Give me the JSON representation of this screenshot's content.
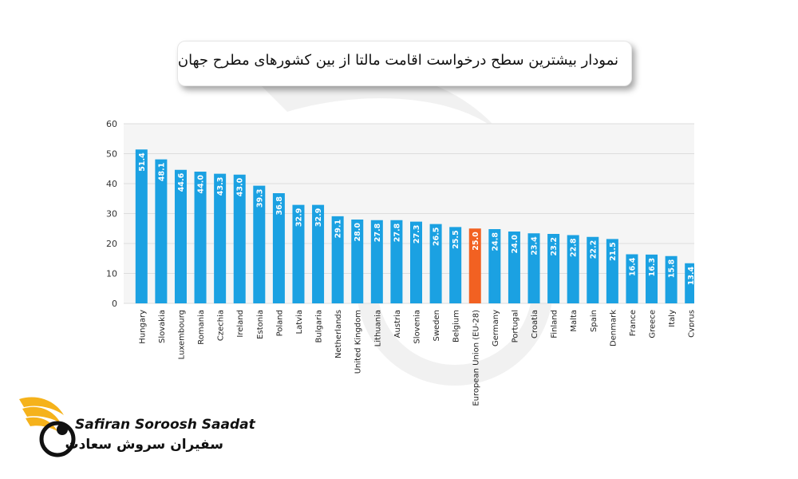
{
  "header": {
    "title": "نمودار بیشترین سطح درخواست اقامت مالتا از بین کشورهای مطرح جهان"
  },
  "brand": {
    "name_en": "Safiran Soroosh Saadat",
    "name_fa": "سفیران سروش سعادت"
  },
  "colors": {
    "bar": "#1ba1e2",
    "highlight": "#f26122",
    "grid": "#dddddd",
    "plot_bg": "#f5f5f5"
  },
  "chart_data": {
    "type": "bar",
    "title": "نمودار بیشترین سطح درخواست اقامت مالتا از بین کشورهای مطرح جهان",
    "xlabel": "",
    "ylabel": "",
    "ylim": [
      0,
      60
    ],
    "yticks": [
      0,
      10,
      20,
      30,
      40,
      50,
      60
    ],
    "grid": true,
    "highlight_category": "European Union (EU-28)",
    "categories": [
      "Hungary",
      "Slovakia",
      "Luxembourg",
      "Romania",
      "Czechia",
      "Ireland",
      "Estonia",
      "Poland",
      "Latvia",
      "Bulgaria",
      "Netherlands",
      "United Kingdom",
      "Lithuania",
      "Austria",
      "Slovenia",
      "Sweden",
      "Belgium",
      "European Union (EU-28)",
      "Germany",
      "Portugal",
      "Croatia",
      "Finland",
      "Malta",
      "Spain",
      "Denmark",
      "France",
      "Greece",
      "Italy",
      "Cyprus"
    ],
    "values": [
      51.4,
      48.1,
      44.6,
      44.0,
      43.3,
      43.0,
      39.3,
      36.8,
      32.9,
      32.9,
      29.1,
      28.0,
      27.8,
      27.8,
      27.3,
      26.5,
      25.5,
      25.0,
      24.8,
      24.0,
      23.4,
      23.2,
      22.8,
      22.2,
      21.5,
      16.4,
      16.3,
      15.8,
      13.4
    ],
    "value_labels": [
      "51.4",
      "48.1",
      "44.6",
      "44.0",
      "43.3",
      "43.0",
      "39.3",
      "36.8",
      "32.9",
      "32.9",
      "29.1",
      "28.0",
      "27.8",
      "27.8",
      "27.3",
      "26.5",
      "25.5",
      "25.0",
      "24.8",
      "24.0",
      "23.4",
      "23.2",
      "22.8",
      "22.2",
      "21.5",
      "16.4",
      "16.3",
      "15.8",
      "13.4"
    ]
  }
}
